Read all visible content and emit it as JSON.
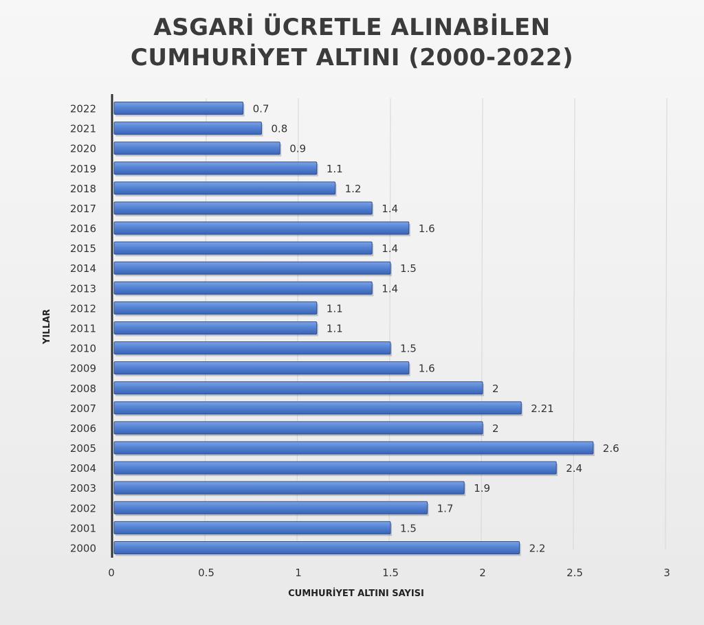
{
  "chart_data": {
    "type": "bar",
    "orientation": "horizontal",
    "title_line1": "ASGARİ ÜCRETLE ALINABİLEN",
    "title_line2": "CUMHURİYET ALTINI (2000-2022)",
    "xlabel": "CUMHURİYET ALTINI SAYISI",
    "ylabel": "YILLAR",
    "xlim": [
      0,
      3
    ],
    "xticks": [
      "0",
      "0.5",
      "1",
      "1.5",
      "2",
      "2.5",
      "3"
    ],
    "grid": true,
    "bar_color": "#4a78c8",
    "categories": [
      "2022",
      "2021",
      "2020",
      "2019",
      "2018",
      "2017",
      "2016",
      "2015",
      "2014",
      "2013",
      "2012",
      "2011",
      "2010",
      "2009",
      "2008",
      "2007",
      "2006",
      "2005",
      "2004",
      "2003",
      "2002",
      "2001",
      "2000"
    ],
    "values": [
      0.7,
      0.8,
      0.9,
      1.1,
      1.2,
      1.4,
      1.6,
      1.4,
      1.5,
      1.4,
      1.1,
      1.1,
      1.5,
      1.6,
      2,
      2.21,
      2,
      2.6,
      2.4,
      1.9,
      1.7,
      1.5,
      2.2
    ],
    "labels": [
      "0.7",
      "0.8",
      "0.9",
      "1.1",
      "1.2",
      "1.4",
      "1.6",
      "1.4",
      "1.5",
      "1.4",
      "1.1",
      "1.1",
      "1.5",
      "1.6",
      "2",
      "2.21",
      "2",
      "2.6",
      "2.4",
      "1.9",
      "1.7",
      "1.5",
      "2.2"
    ]
  }
}
